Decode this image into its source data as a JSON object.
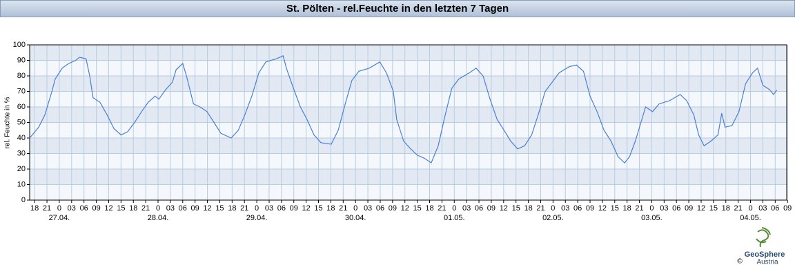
{
  "chart_data": {
    "type": "line",
    "title": "St. Pölten - rel.Feuchte in den letzten 7 Tagen",
    "ylabel": "rel. Feuchte in %",
    "color": "#4a7fd8",
    "grid": true,
    "xlim": [
      -7.2,
      176.8
    ],
    "ylim": [
      0,
      100
    ],
    "yticks": [
      0,
      10,
      20,
      30,
      40,
      50,
      60,
      70,
      80,
      90,
      100
    ],
    "xticks": [
      {
        "value": -6,
        "label": "18"
      },
      {
        "value": -3,
        "label": "21"
      },
      0,
      {
        "value": 3,
        "label": "03"
      },
      {
        "value": 6,
        "label": "06"
      },
      {
        "value": 9,
        "label": "09"
      },
      12,
      15,
      18,
      21,
      {
        "value": 24,
        "label": "0"
      },
      {
        "value": 27,
        "label": "03"
      },
      {
        "value": 30,
        "label": "06"
      },
      {
        "value": 33,
        "label": "09"
      },
      {
        "value": 36,
        "label": "12"
      },
      {
        "value": 39,
        "label": "15"
      },
      {
        "value": 42,
        "label": "18"
      },
      {
        "value": 45,
        "label": "21"
      },
      {
        "value": 48,
        "label": "0"
      },
      {
        "value": 51,
        "label": "03"
      },
      {
        "value": 54,
        "label": "06"
      },
      {
        "value": 57,
        "label": "09"
      },
      {
        "value": 60,
        "label": "12"
      },
      {
        "value": 63,
        "label": "15"
      },
      {
        "value": 66,
        "label": "18"
      },
      {
        "value": 69,
        "label": "21"
      },
      {
        "value": 72,
        "label": "0"
      },
      {
        "value": 75,
        "label": "03"
      },
      {
        "value": 78,
        "label": "06"
      },
      {
        "value": 81,
        "label": "09"
      },
      {
        "value": 84,
        "label": "12"
      },
      {
        "value": 87,
        "label": "15"
      },
      {
        "value": 90,
        "label": "18"
      },
      {
        "value": 93,
        "label": "21"
      },
      {
        "value": 96,
        "label": "0"
      },
      {
        "value": 99,
        "label": "03"
      },
      {
        "value": 102,
        "label": "06"
      },
      {
        "value": 105,
        "label": "09"
      },
      {
        "value": 108,
        "label": "12"
      },
      {
        "value": 111,
        "label": "15"
      },
      {
        "value": 114,
        "label": "18"
      },
      {
        "value": 117,
        "label": "21"
      },
      {
        "value": 120,
        "label": "0"
      },
      {
        "value": 123,
        "label": "03"
      },
      {
        "value": 126,
        "label": "06"
      },
      {
        "value": 129,
        "label": "09"
      },
      {
        "value": 132,
        "label": "12"
      },
      {
        "value": 135,
        "label": "15"
      },
      {
        "value": 138,
        "label": "18"
      },
      {
        "value": 141,
        "label": "21"
      },
      {
        "value": 144,
        "label": "0"
      },
      {
        "value": 147,
        "label": "03"
      },
      {
        "value": 150,
        "label": "06"
      },
      {
        "value": 153,
        "label": "09"
      },
      {
        "value": 156,
        "label": "12"
      },
      {
        "value": 159,
        "label": "15"
      },
      {
        "value": 162,
        "label": "18"
      },
      {
        "value": 165,
        "label": "21"
      },
      {
        "value": 168,
        "label": "0"
      },
      {
        "value": 171,
        "label": "03"
      },
      {
        "value": 174,
        "label": "06"
      },
      {
        "value": 177,
        "label": "09"
      }
    ],
    "date_labels": [
      {
        "value": 0,
        "label": "27.04."
      },
      {
        "value": 24,
        "label": "28.04."
      },
      {
        "value": 48,
        "label": "29.04."
      },
      {
        "value": 72,
        "label": "30.04."
      },
      {
        "value": 96,
        "label": "01.05."
      },
      {
        "value": 120,
        "label": "02.05."
      },
      {
        "value": 144,
        "label": "03.05."
      },
      {
        "value": 168,
        "label": "04.05."
      }
    ],
    "x": [
      -7.2,
      -5,
      -3.5,
      -1.8,
      -1,
      0.7,
      2.3,
      4,
      4.9,
      6.5,
      7.4,
      8.2,
      9.9,
      11.6,
      13.3,
      15,
      16.6,
      18.3,
      20,
      21.6,
      23.3,
      24.2,
      25.8,
      27.5,
      28.4,
      30,
      30.9,
      32.6,
      34.2,
      35.9,
      37.6,
      39.3,
      41.8,
      43.5,
      45.1,
      46.8,
      48.5,
      50.2,
      52.7,
      54.4,
      55.2,
      56.9,
      58.6,
      60.2,
      61.9,
      63.6,
      66.1,
      67.8,
      69.5,
      71.1,
      72.8,
      75.3,
      77.9,
      79.5,
      81.2,
      82,
      83.7,
      85.4,
      87,
      88.7,
      90.4,
      92.1,
      93.8,
      95.4,
      97.1,
      99.7,
      101.3,
      103,
      104.7,
      106.4,
      108.1,
      109.7,
      111.4,
      113.1,
      114.8,
      116.4,
      118.1,
      119.8,
      121.5,
      124,
      125.7,
      127.4,
      129,
      130.7,
      132.4,
      134.1,
      135.8,
      137.4,
      138.6,
      140,
      141.6,
      142.5,
      144.2,
      145.8,
      148.3,
      150.9,
      152.5,
      154.2,
      155.4,
      156.7,
      158.4,
      160.1,
      161,
      161.8,
      163.5,
      165.2,
      166.8,
      168.5,
      169.7,
      171,
      172.7,
      173.6,
      174.4
    ],
    "values": [
      40,
      47,
      55,
      70,
      78,
      85,
      88,
      90,
      92,
      91,
      80,
      66,
      63,
      55,
      46,
      42,
      44,
      50,
      57,
      63,
      67,
      65,
      71,
      76,
      84,
      88,
      80,
      62,
      60,
      57,
      50,
      43,
      40,
      45,
      55,
      67,
      82,
      89,
      91,
      93,
      85,
      72,
      60,
      52,
      42,
      37,
      36,
      45,
      62,
      77,
      83,
      85,
      89,
      82,
      70,
      52,
      38,
      33,
      29,
      27,
      24,
      35,
      55,
      72,
      78,
      82,
      85,
      80,
      65,
      52,
      45,
      38,
      33,
      35,
      42,
      55,
      70,
      76,
      82,
      86,
      87,
      83,
      67,
      57,
      45,
      38,
      28,
      24,
      28,
      38,
      52,
      60,
      57,
      62,
      64,
      68,
      64,
      55,
      42,
      35,
      38,
      42,
      56,
      47,
      48,
      57,
      75,
      82,
      85,
      74,
      71,
      68,
      71
    ]
  },
  "logo": {
    "name": "GeoSphere",
    "sub": "Austria",
    "copyright": "©"
  }
}
